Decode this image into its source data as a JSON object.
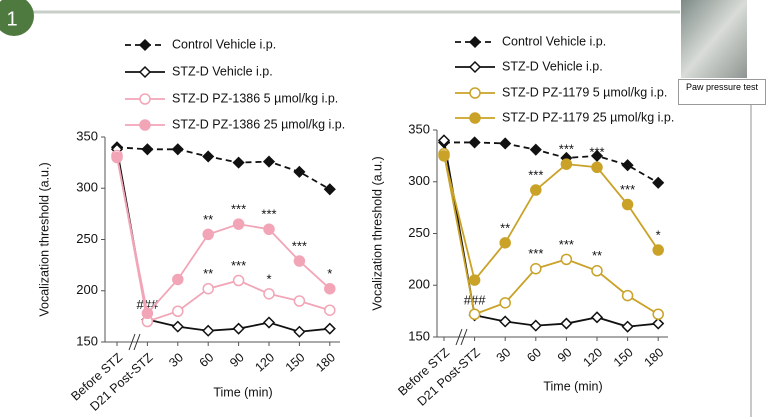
{
  "slide": {
    "badge": "1",
    "photo_caption": "Paw pressure test"
  },
  "chart_data": [
    {
      "type": "line",
      "y_label": "Vocalization threshold (a.u.)",
      "x_label": "Time (min)",
      "categories": [
        "Before STZ",
        "D21 Post-STZ",
        "30",
        "60",
        "90",
        "120",
        "150",
        "180"
      ],
      "ylim": [
        150,
        350
      ],
      "yticks": [
        150,
        200,
        250,
        300,
        350
      ],
      "series": [
        {
          "name": "Control Vehicle i.p.",
          "color": "#111111",
          "marker": "diamond",
          "filled": true,
          "dashed": true,
          "values": [
            340,
            338,
            338,
            331,
            325,
            326,
            316,
            299
          ]
        },
        {
          "name": "STZ-D Vehicle i.p.",
          "color": "#111111",
          "marker": "diamond",
          "filled": false,
          "dashed": false,
          "values": [
            338,
            172,
            165,
            161,
            163,
            169,
            160,
            163
          ],
          "annotations": [
            null,
            "###",
            null,
            null,
            null,
            null,
            null,
            null
          ]
        },
        {
          "name": "STZ-D PZ-1386 5 µmol/kg i.p.",
          "color": "#f2a5b7",
          "marker": "circle",
          "filled": false,
          "dashed": false,
          "values": [
            332,
            170,
            180,
            202,
            210,
            197,
            190,
            181
          ],
          "annotations": [
            null,
            null,
            null,
            "**",
            "***",
            "*",
            null,
            null
          ]
        },
        {
          "name": "STZ-D PZ-1386 25 µmol/kg i.p.",
          "color": "#f2a5b7",
          "marker": "circle",
          "filled": true,
          "dashed": false,
          "values": [
            330,
            178,
            211,
            255,
            265,
            260,
            229,
            202
          ],
          "annotations": [
            null,
            null,
            null,
            "**",
            "***",
            "***",
            "***",
            "*"
          ]
        }
      ]
    },
    {
      "type": "line",
      "y_label": "Vocalization threshold (a.u.)",
      "x_label": "Time (min)",
      "categories": [
        "Before STZ",
        "D21 Post-STZ",
        "30",
        "60",
        "90",
        "120",
        "150",
        "180"
      ],
      "ylim": [
        150,
        350
      ],
      "yticks": [
        150,
        200,
        250,
        300,
        350
      ],
      "series": [
        {
          "name": "Control Vehicle i.p.",
          "color": "#111111",
          "marker": "diamond",
          "filled": true,
          "dashed": true,
          "values": [
            338,
            338,
            337,
            331,
            323,
            325,
            316,
            299
          ]
        },
        {
          "name": "STZ-D Vehicle i.p.",
          "color": "#111111",
          "marker": "diamond",
          "filled": false,
          "dashed": false,
          "values": [
            340,
            171,
            165,
            161,
            163,
            169,
            160,
            163
          ],
          "annotations": [
            null,
            "###",
            null,
            null,
            null,
            null,
            null,
            null
          ]
        },
        {
          "name": "STZ-D PZ-1179 5 µmol/kg i.p.",
          "color": "#c9a227",
          "marker": "circle",
          "filled": false,
          "dashed": false,
          "values": [
            327,
            172,
            183,
            216,
            225,
            214,
            190,
            172
          ],
          "annotations": [
            null,
            null,
            null,
            "***",
            "***",
            "**",
            null,
            null
          ]
        },
        {
          "name": "STZ-D PZ-1179 25 µmol/kg i.p.",
          "color": "#c9a227",
          "marker": "circle",
          "filled": true,
          "dashed": false,
          "values": [
            325,
            205,
            241,
            292,
            317,
            314,
            278,
            234
          ],
          "annotations": [
            null,
            null,
            "**",
            "***",
            "***",
            "***",
            "***",
            "*"
          ]
        }
      ]
    }
  ]
}
